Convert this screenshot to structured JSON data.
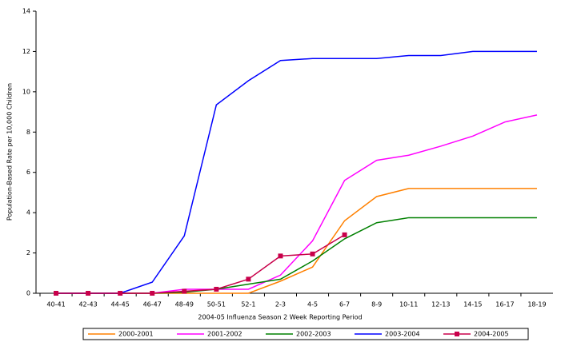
{
  "chart_data": {
    "type": "line",
    "x_label": "2004-05 Influenza Season 2 Week Reporting Period",
    "y_label": "Population-Based Rate per 10,000 Children",
    "categories": [
      "40-41",
      "42-43",
      "44-45",
      "46-47",
      "48-49",
      "50-51",
      "52-1",
      "2-3",
      "4-5",
      "6-7",
      "8-9",
      "10-11",
      "12-13",
      "14-15",
      "16-17",
      "18-19"
    ],
    "series": [
      {
        "name": "2000-2001",
        "color": "#ff8000",
        "values": [
          0,
          0,
          0,
          0,
          0,
          0,
          0,
          0.6,
          1.3,
          3.6,
          4.8,
          5.2,
          5.2,
          5.2,
          5.2,
          5.2
        ]
      },
      {
        "name": "2001-2002",
        "color": "#ff00ff",
        "values": [
          0,
          0,
          0,
          0,
          0.2,
          0.2,
          0.2,
          0.9,
          2.6,
          5.6,
          6.6,
          6.85,
          7.3,
          7.8,
          8.5,
          8.85
        ]
      },
      {
        "name": "2002-2003",
        "color": "#008000",
        "values": [
          0,
          0,
          0,
          0,
          0.05,
          0.2,
          0.45,
          0.7,
          1.6,
          2.7,
          3.5,
          3.75,
          3.75,
          3.75,
          3.75,
          3.75
        ]
      },
      {
        "name": "2003-2004",
        "color": "#0000ff",
        "values": [
          0,
          0,
          0,
          0.55,
          2.85,
          9.35,
          10.55,
          11.55,
          11.65,
          11.65,
          11.65,
          11.8,
          11.8,
          12,
          12,
          12
        ]
      },
      {
        "name": "2004-2005",
        "color": "#c8004a",
        "marker": true,
        "values": [
          0,
          0,
          0,
          0,
          0.1,
          0.2,
          0.7,
          1.85,
          1.95,
          2.9,
          null,
          null,
          null,
          null,
          null,
          null
        ]
      }
    ],
    "ylim": [
      0,
      14
    ],
    "yticks": [
      0,
      2,
      4,
      6,
      8,
      10,
      12,
      14
    ],
    "grid": false
  }
}
